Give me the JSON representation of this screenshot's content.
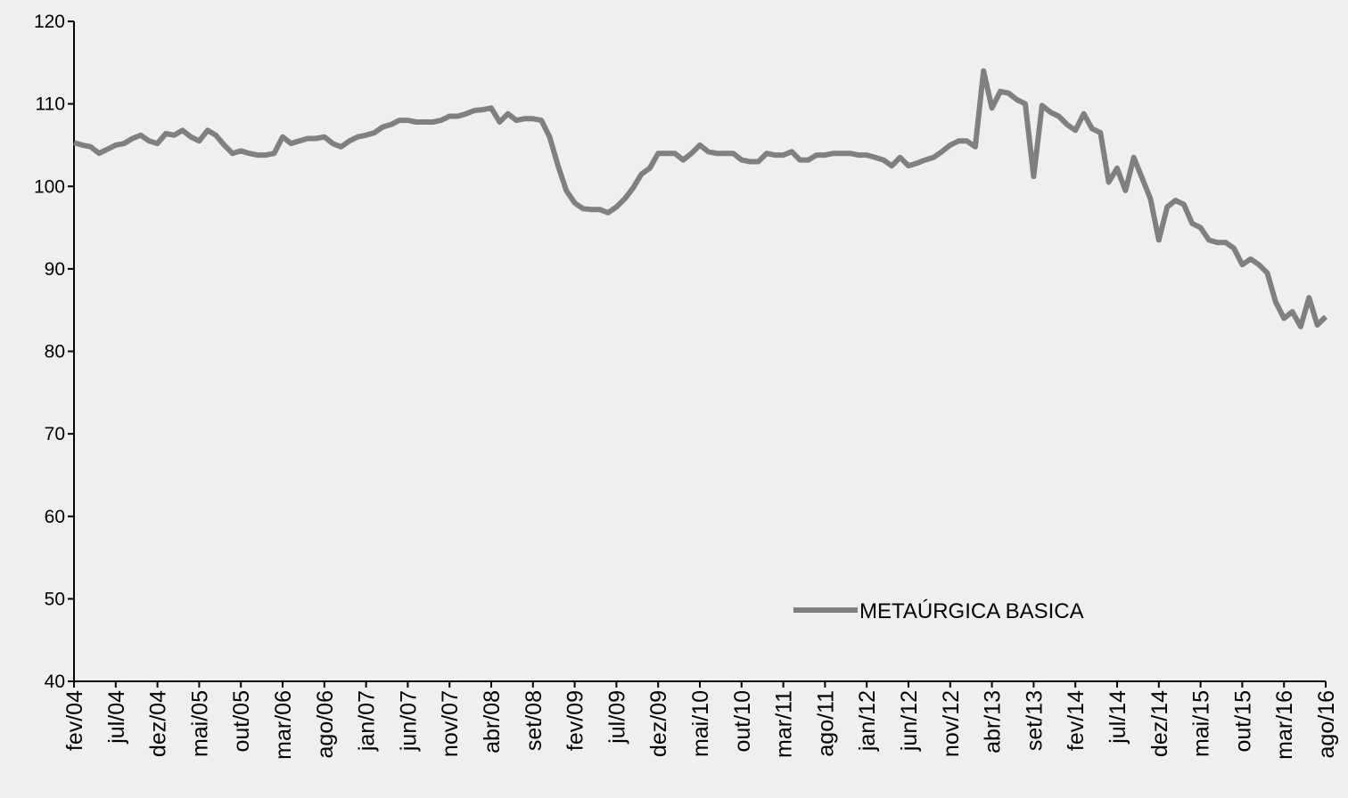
{
  "chart_data": {
    "type": "line",
    "categories": [
      "fev/04",
      null,
      null,
      null,
      null,
      "jul/04",
      null,
      null,
      null,
      null,
      "dez/04",
      null,
      null,
      null,
      null,
      "mai/05",
      null,
      null,
      null,
      null,
      "out/05",
      null,
      null,
      null,
      null,
      "mar/06",
      null,
      null,
      null,
      null,
      "ago/06",
      null,
      null,
      null,
      null,
      "jan/07",
      null,
      null,
      null,
      null,
      "jun/07",
      null,
      null,
      null,
      null,
      "nov/07",
      null,
      null,
      null,
      null,
      "abr/08",
      null,
      null,
      null,
      null,
      "set/08",
      null,
      null,
      null,
      null,
      "fev/09",
      null,
      null,
      null,
      null,
      "jul/09",
      null,
      null,
      null,
      null,
      "dez/09",
      null,
      null,
      null,
      null,
      "mai/10",
      null,
      null,
      null,
      null,
      "out/10",
      null,
      null,
      null,
      null,
      "mar/11",
      null,
      null,
      null,
      null,
      "ago/11",
      null,
      null,
      null,
      null,
      "jan/12",
      null,
      null,
      null,
      null,
      "jun/12",
      null,
      null,
      null,
      null,
      "nov/12",
      null,
      null,
      null,
      null,
      "abr/13",
      null,
      null,
      null,
      null,
      "set/13",
      null,
      null,
      null,
      null,
      "fev/14",
      null,
      null,
      null,
      null,
      "jul/14",
      null,
      null,
      null,
      null,
      "dez/14",
      null,
      null,
      null,
      null,
      "mai/15",
      null,
      null,
      null,
      null,
      "out/15",
      null,
      null,
      null,
      null,
      "mar/16",
      null,
      null,
      null,
      null,
      "ago/16"
    ],
    "series": [
      {
        "name": "METAÚRGICA BASICA",
        "color": "#808080",
        "values": [
          105.3,
          105,
          104.8,
          104,
          104.5,
          105,
          105.2,
          105.8,
          106.2,
          105.5,
          105.2,
          106.4,
          106.2,
          106.8,
          106,
          105.5,
          106.8,
          106.2,
          105,
          104,
          104.3,
          104,
          103.8,
          103.8,
          104,
          106,
          105.2,
          105.5,
          105.8,
          105.8,
          106,
          105.2,
          104.8,
          105.5,
          106,
          106.2,
          106.5,
          107.2,
          107.5,
          108,
          108,
          107.8,
          107.8,
          107.8,
          108,
          108.5,
          108.5,
          108.8,
          109.2,
          109.3,
          109.5,
          107.8,
          108.8,
          108,
          108.2,
          108.2,
          108,
          106,
          102.5,
          99.5,
          98,
          97.3,
          97.2,
          97.2,
          96.8,
          97.5,
          98.5,
          99.8,
          101.5,
          102.2,
          104,
          104,
          104,
          103.2,
          104,
          105,
          104.2,
          104,
          104,
          104,
          103.2,
          103,
          103,
          104,
          103.8,
          103.8,
          104.2,
          103.2,
          103.2,
          103.8,
          103.8,
          104,
          104,
          104,
          103.8,
          103.8,
          103.5,
          103.2,
          102.5,
          103.5,
          102.5,
          102.8,
          103.2,
          103.5,
          104.2,
          105,
          105.5,
          105.5,
          104.8,
          114,
          109.5,
          111.5,
          111.3,
          110.5,
          110,
          101.2,
          109.8,
          109,
          108.5,
          107.5,
          106.8,
          108.8,
          107,
          106.5,
          100.5,
          102.2,
          99.5,
          103.5,
          101,
          98.5,
          93.5,
          97.5,
          98.3,
          97.8,
          95.5,
          95,
          93.5,
          93.2,
          93.2,
          92.5,
          90.5,
          91.2,
          90.5,
          89.5,
          86,
          84,
          84.8,
          83,
          86.5,
          83.2,
          84.2
        ]
      }
    ],
    "ylim": [
      40,
      120
    ],
    "yticks": [
      40,
      50,
      60,
      70,
      80,
      90,
      100,
      110,
      120
    ],
    "legend": "lower right"
  }
}
